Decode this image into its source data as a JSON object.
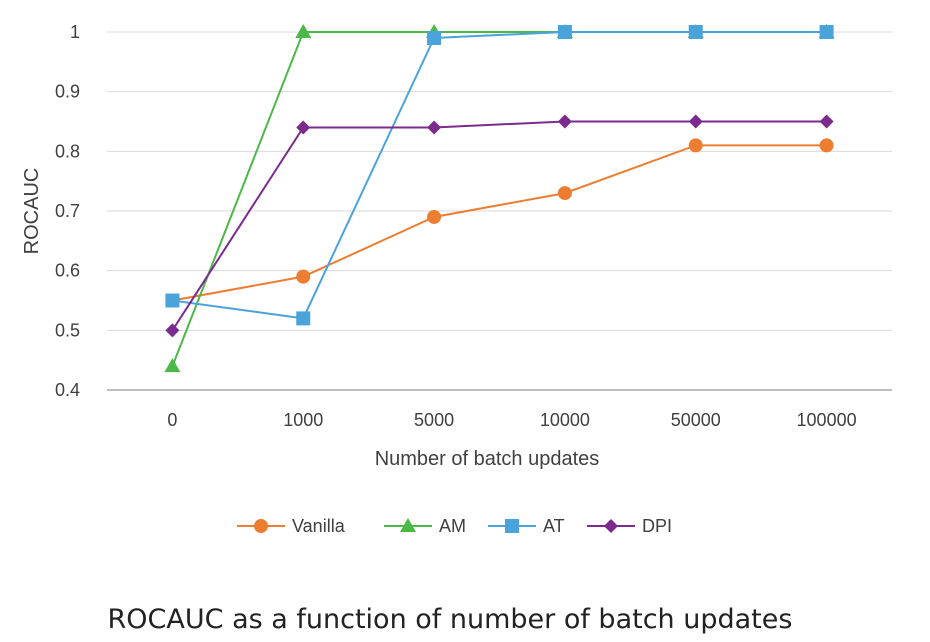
{
  "chart_data": {
    "type": "line",
    "categories": [
      "0",
      "1000",
      "5000",
      "10000",
      "50000",
      "100000"
    ],
    "series": [
      {
        "name": "Vanilla",
        "color": "#ED7D31",
        "marker": "circle",
        "values": [
          0.55,
          0.59,
          0.69,
          0.73,
          0.81,
          0.81
        ]
      },
      {
        "name": "AM",
        "color": "#4CB848",
        "marker": "triangle",
        "values": [
          0.44,
          1.0,
          1.0,
          1.0,
          1.0,
          1.0
        ]
      },
      {
        "name": "AT",
        "color": "#4BA3DB",
        "marker": "square",
        "values": [
          0.55,
          0.52,
          0.99,
          1.0,
          1.0,
          1.0
        ]
      },
      {
        "name": "DPI",
        "color": "#7B2A8E",
        "marker": "diamond",
        "values": [
          0.5,
          0.84,
          0.84,
          0.85,
          0.85,
          0.85
        ]
      }
    ],
    "xlabel": "Number of batch updates",
    "ylabel": "ROCAUC",
    "ylim": [
      0.4,
      1.0
    ],
    "yticks": [
      "0.4",
      "0.5",
      "0.6",
      "0.7",
      "0.8",
      "0.9",
      "1"
    ],
    "grid": true,
    "legend_position": "bottom",
    "caption": "ROCAUC as a function of number of batch updates"
  }
}
